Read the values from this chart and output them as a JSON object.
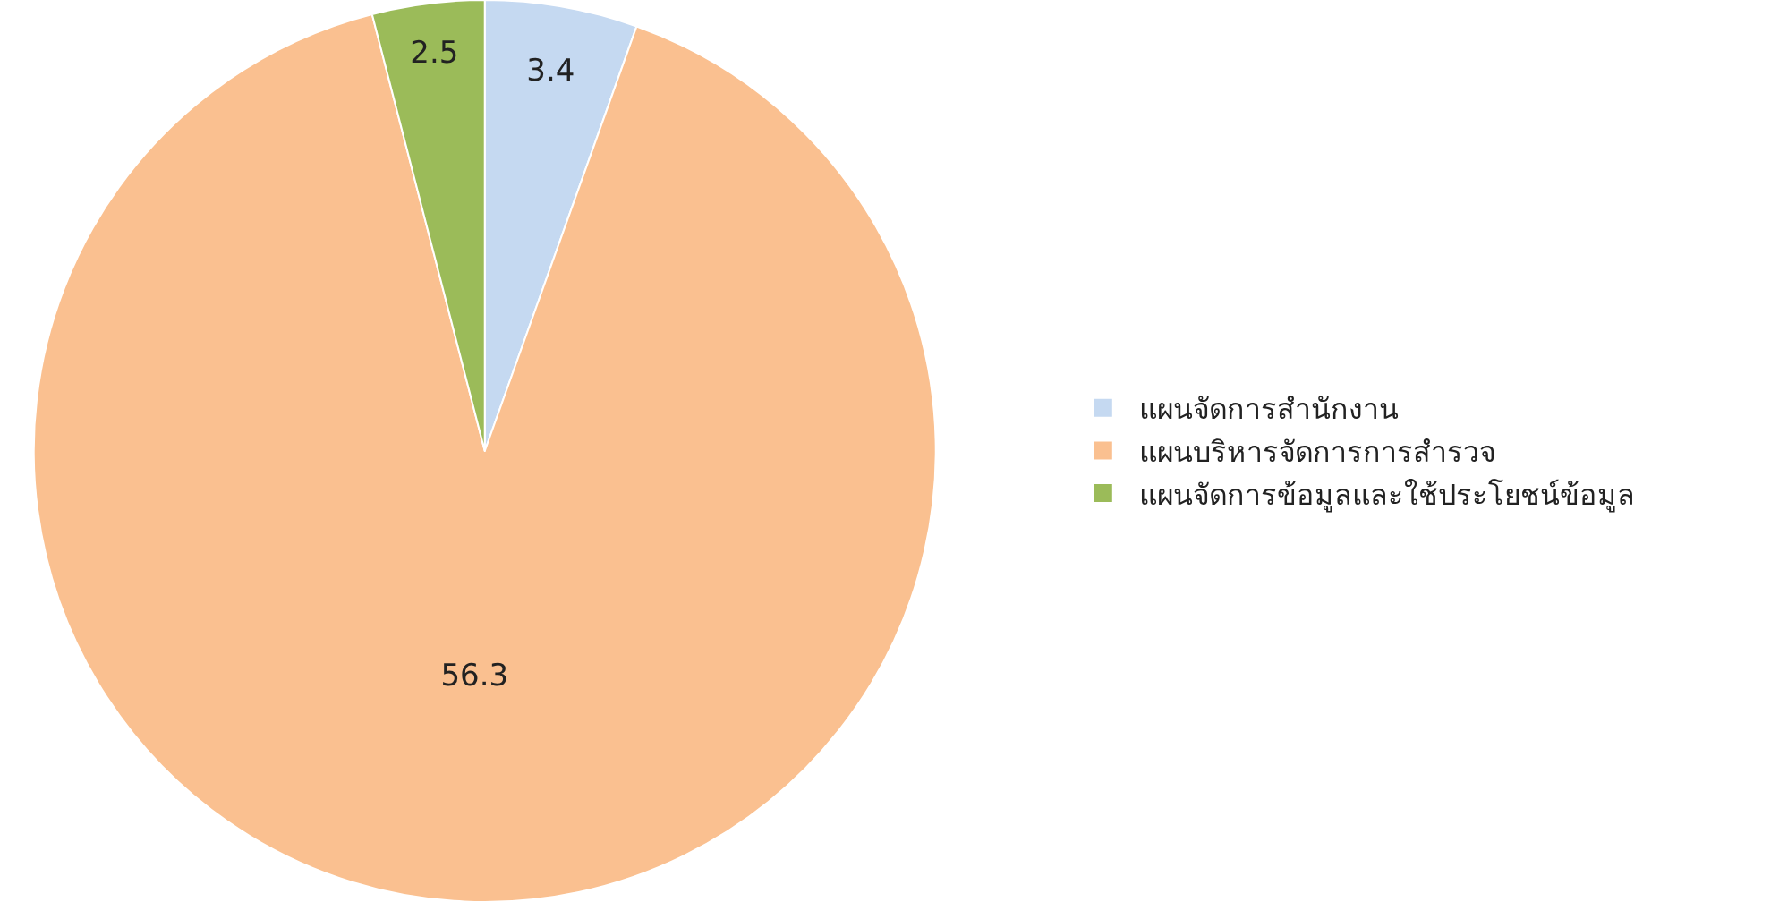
{
  "chart_data": {
    "type": "pie",
    "categories": [
      "แผนจัดการสำนักงาน",
      "แผนบริหารจัดการการสำรวจ",
      "แผนจัดการข้อมูลและใช้ประโยชน์ข้อมูล"
    ],
    "values": [
      3.4,
      56.3,
      2.5
    ],
    "colors": [
      "#c5d9f1",
      "#fac090",
      "#9bbb59"
    ],
    "data_labels": true,
    "legend": "right"
  }
}
